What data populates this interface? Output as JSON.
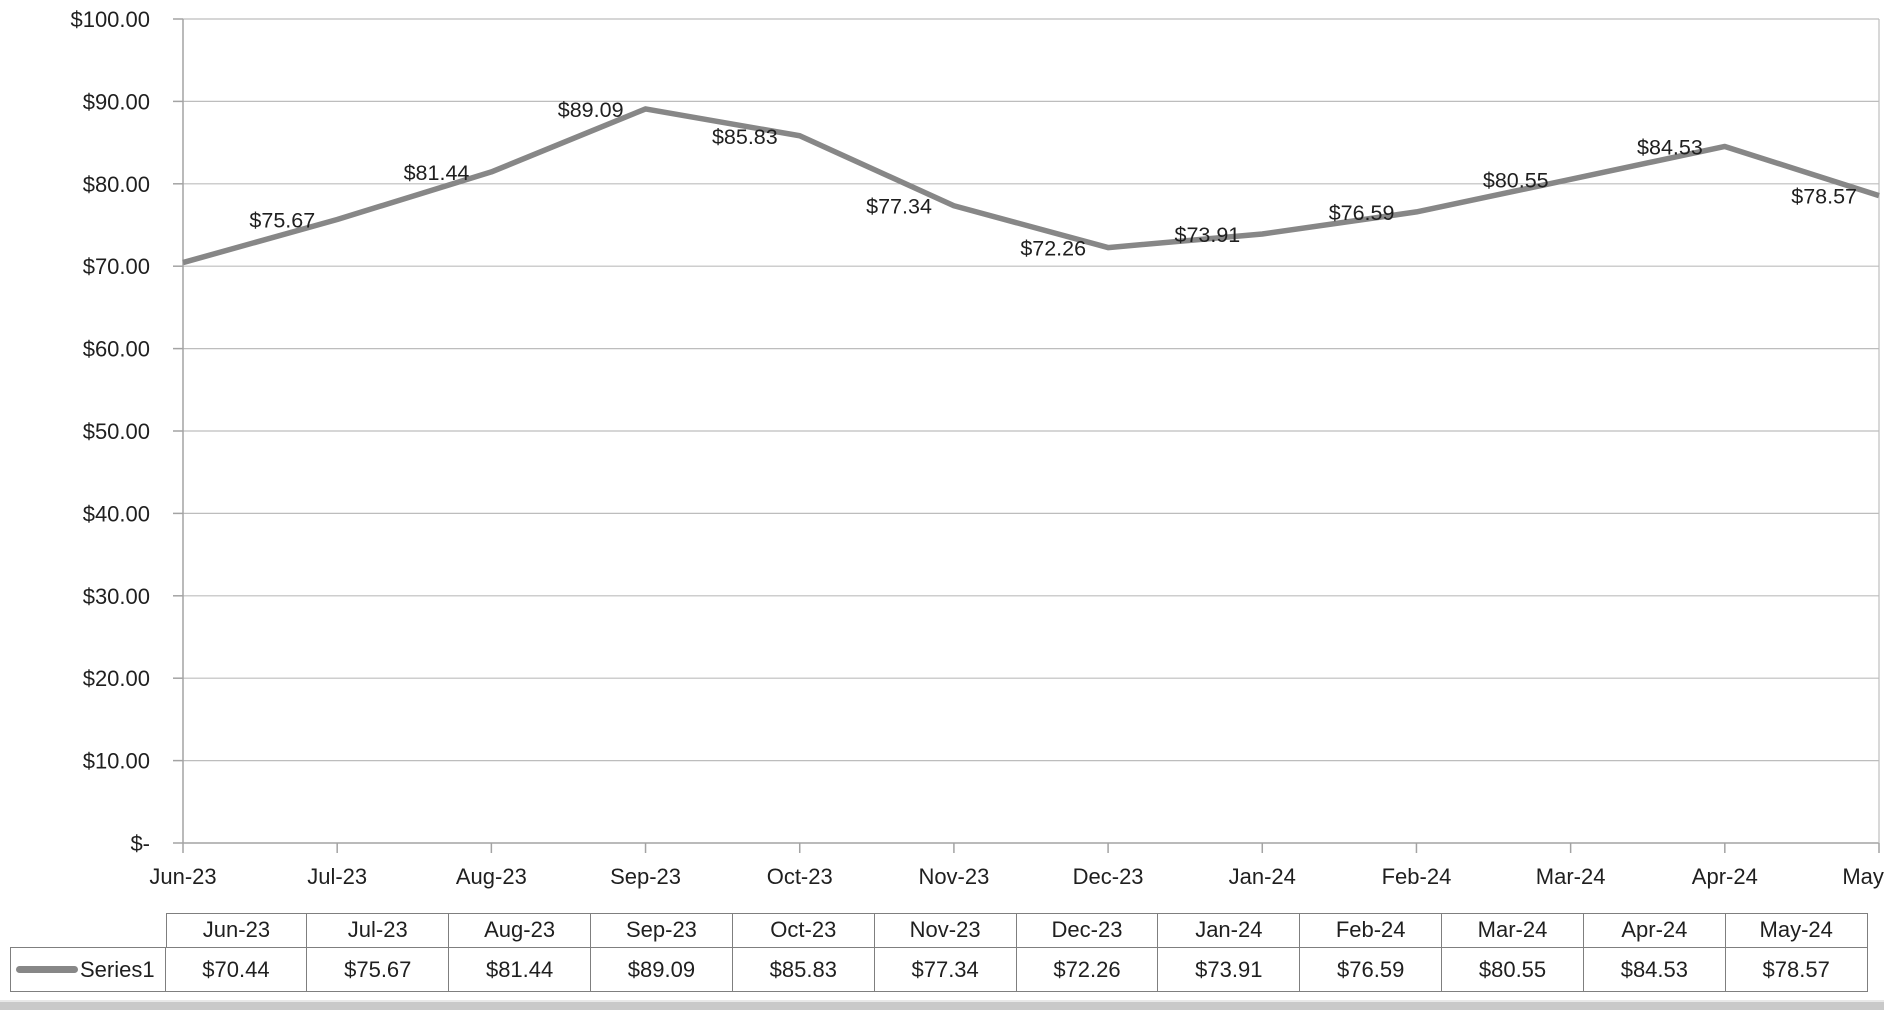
{
  "chart_data": {
    "type": "line",
    "title": "",
    "categories": [
      "Jun-23",
      "Jul-23",
      "Aug-23",
      "Sep-23",
      "Oct-23",
      "Nov-23",
      "Dec-23",
      "Jan-24",
      "Feb-24",
      "Mar-24",
      "Apr-24",
      "May-24"
    ],
    "series": [
      {
        "name": "Series1",
        "values": [
          70.44,
          75.67,
          81.44,
          89.09,
          85.83,
          77.34,
          72.26,
          73.91,
          76.59,
          80.55,
          84.53,
          78.57
        ]
      }
    ],
    "point_labels": [
      null,
      "$75.67",
      "$81.44",
      "$89.09",
      "$85.83",
      "$77.34",
      "$72.26",
      "$73.91",
      "$76.59",
      "$80.55",
      "$84.53",
      "$78.57"
    ],
    "y_tick_labels": [
      "$100.00",
      "$90.00",
      "$80.00",
      "$70.00",
      "$60.00",
      "$50.00",
      "$40.00",
      "$30.00",
      "$20.00",
      "$10.00",
      "$-"
    ],
    "ylim": [
      0,
      100
    ],
    "grid": "horizontal-on",
    "legend_position": "left-of-data-table",
    "line_color": "#878787",
    "gridline_color": "#bdbdbd",
    "axis_color": "#a3a3a3",
    "text_color": "#1f1f1f"
  },
  "data_table": {
    "legend_label": "Series1",
    "headers": [
      "Jun-23",
      "Jul-23",
      "Aug-23",
      "Sep-23",
      "Oct-23",
      "Nov-23",
      "Dec-23",
      "Jan-24",
      "Feb-24",
      "Mar-24",
      "Apr-24",
      "May-24"
    ],
    "values": [
      "$70.44",
      "$75.67",
      "$81.44",
      "$89.09",
      "$85.83",
      "$77.34",
      "$72.26",
      "$73.91",
      "$76.59",
      "$80.55",
      "$84.53",
      "$78.57"
    ]
  }
}
